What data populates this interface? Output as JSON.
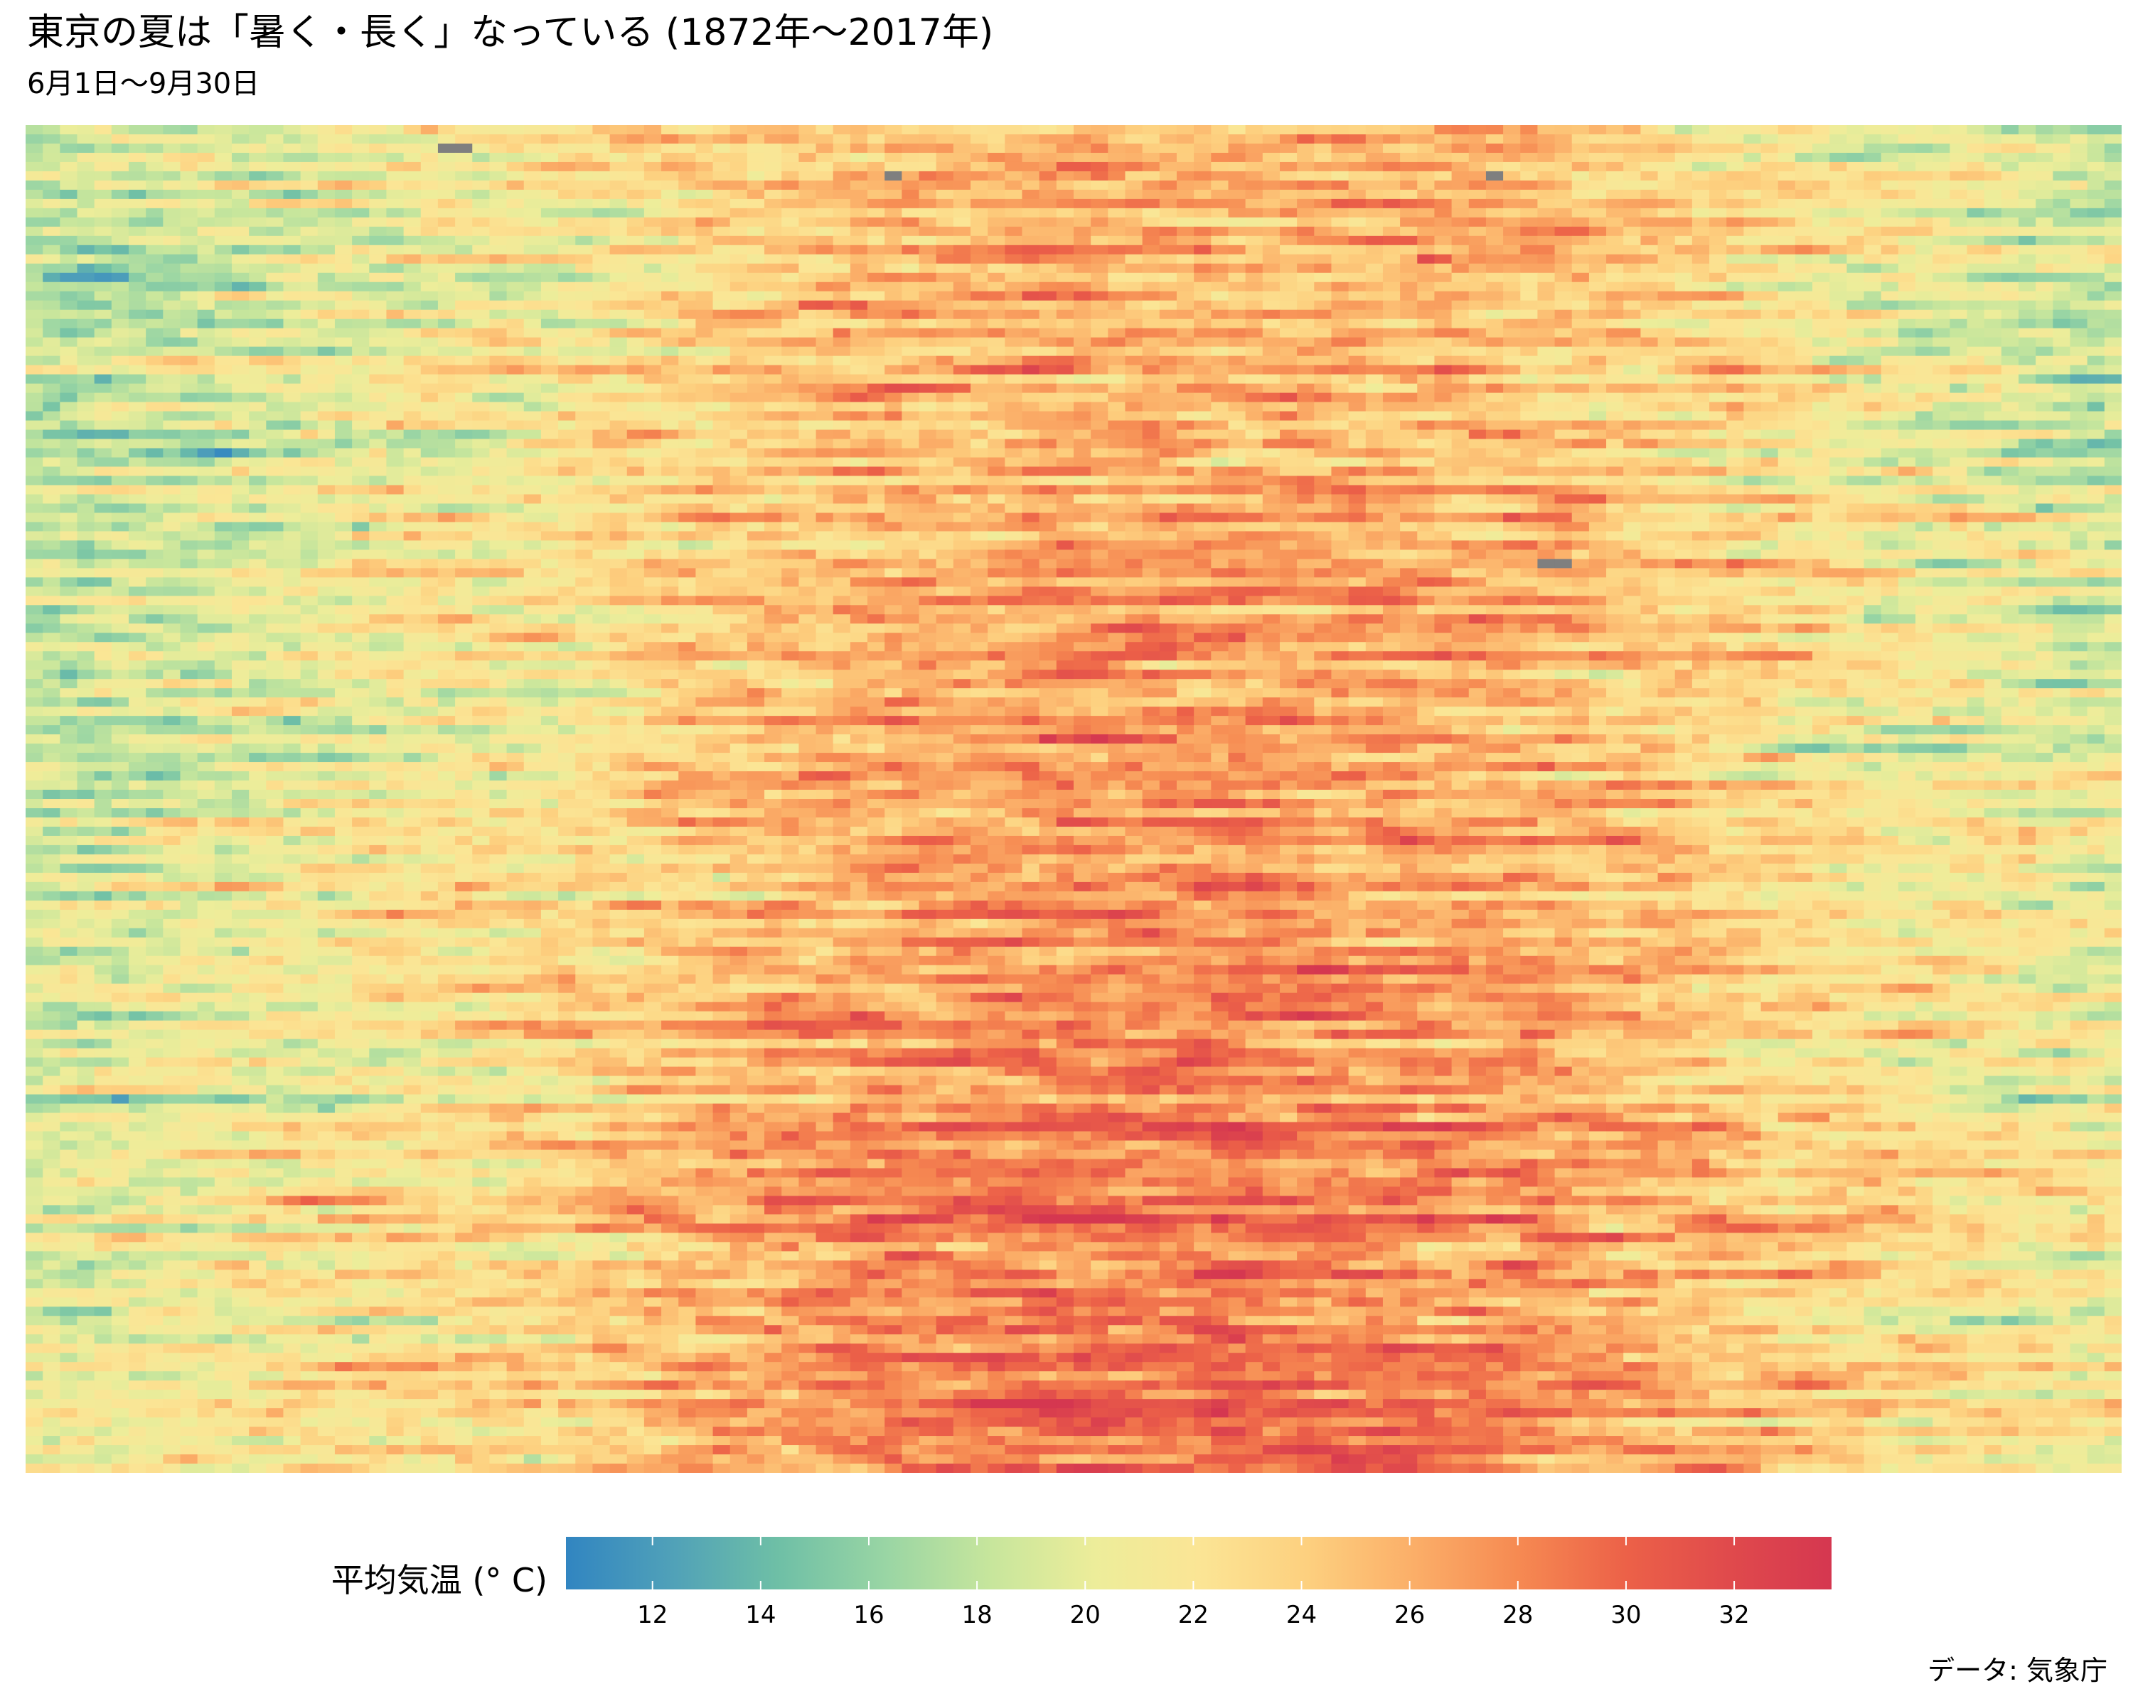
{
  "chart_data": {
    "type": "heatmap",
    "title": "東京の夏は「暑く・長く」なっている (1872年〜2017年)",
    "subtitle": "6月1日〜9月30日",
    "caption": "データ: 気象庁",
    "x": {
      "start": "6月1日",
      "end": "9月30日",
      "days": 122
    },
    "y": {
      "start_year": 1872,
      "end_year": 2017,
      "years": 146
    },
    "legend": {
      "title": "平均気温 (° C)",
      "position": "bottom",
      "min": 10.4,
      "max": 33.8,
      "ticks": [
        12,
        14,
        16,
        18,
        20,
        22,
        24,
        26,
        28,
        30,
        32
      ]
    },
    "colorscale": [
      {
        "value": 10.4,
        "color": "#3185c1"
      },
      {
        "value": 12.3,
        "color": "#4fa0b9"
      },
      {
        "value": 14.3,
        "color": "#6ebfa6"
      },
      {
        "value": 16.3,
        "color": "#99d5a4"
      },
      {
        "value": 18.3,
        "color": "#c8e69c"
      },
      {
        "value": 20.2,
        "color": "#eded9a"
      },
      {
        "value": 22.1,
        "color": "#fbe595"
      },
      {
        "value": 24.1,
        "color": "#fdd07f"
      },
      {
        "value": 26.1,
        "color": "#fbae68"
      },
      {
        "value": 28.0,
        "color": "#f68a52"
      },
      {
        "value": 30.0,
        "color": "#ec6148"
      },
      {
        "value": 31.9,
        "color": "#e04a4c"
      },
      {
        "value": 33.8,
        "color": "#d53750"
      }
    ],
    "missing_color": "#7f7f7f",
    "missing_cells": [
      {
        "year": 1874,
        "day": 24
      },
      {
        "year": 1874,
        "day": 25
      },
      {
        "year": 1877,
        "day": 50
      },
      {
        "year": 1877,
        "day": 85
      },
      {
        "year": 1919,
        "day": 88
      },
      {
        "year": 1919,
        "day": 89
      }
    ],
    "mean_profile": {
      "description": "approximate seasonal mean by day (6月1日→9月30日), used as the center of each row",
      "day": [
        0,
        10,
        20,
        30,
        40,
        50,
        60,
        70,
        80,
        90,
        100,
        110,
        121
      ],
      "early_period": [
        17.8,
        19.0,
        20.5,
        21.5,
        23.5,
        25.0,
        25.8,
        26.0,
        25.5,
        24.5,
        22.5,
        20.5,
        19.0
      ],
      "late_period": [
        20.5,
        21.5,
        22.5,
        24.0,
        26.5,
        28.5,
        29.5,
        29.5,
        28.5,
        27.0,
        25.0,
        22.8,
        21.5
      ]
    }
  }
}
